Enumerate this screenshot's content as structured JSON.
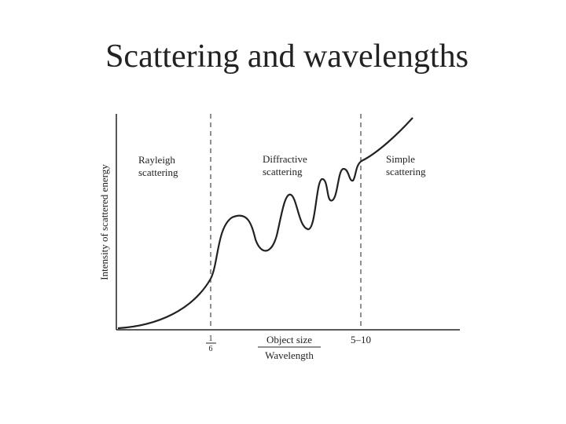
{
  "title": "Scattering and wavelengths",
  "diagram": {
    "y_axis_label": "Intensity of scattered energy",
    "x_axis_label": {
      "numerator": "Object size",
      "denominator": "Wavelength"
    },
    "boundaries": [
      {
        "label": {
          "numerator": "1",
          "denominator": "6"
        }
      },
      {
        "label": "5–10"
      }
    ],
    "regions": [
      {
        "label": [
          "Rayleigh",
          "scattering"
        ]
      },
      {
        "label": [
          "Diffractive",
          "scattering"
        ]
      },
      {
        "label": [
          "Simple",
          "scattering"
        ]
      }
    ]
  }
}
